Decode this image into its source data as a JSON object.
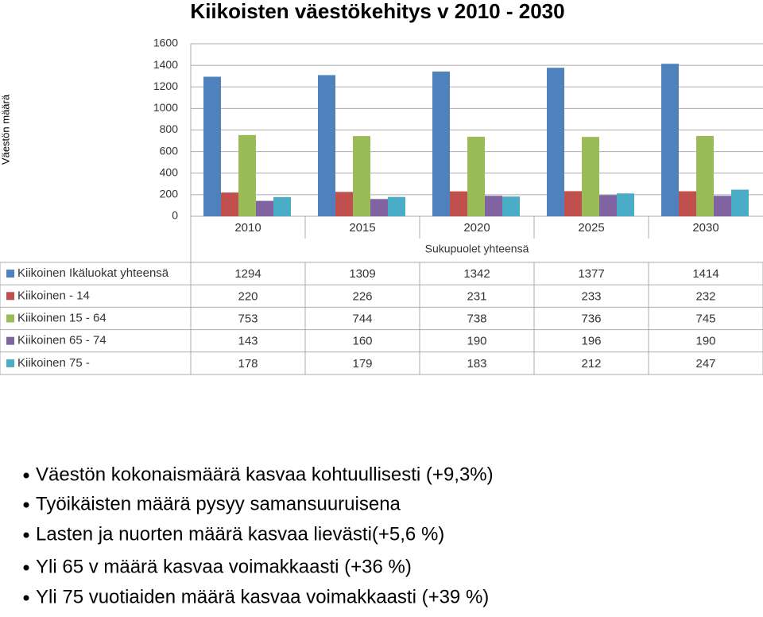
{
  "chart_data": {
    "type": "bar",
    "title": "Kiikoisten väestökehitys v 2010 - 2030",
    "y_label": "Väestön määrä",
    "x_label": "Sukupuolet yhteensä",
    "categories": [
      "2010",
      "2015",
      "2020",
      "2025",
      "2030"
    ],
    "series": [
      {
        "name": "Kiikoinen Ikäluokat yhteensä",
        "color": "#4f81bd",
        "values": [
          1294,
          1309,
          1342,
          1377,
          1414
        ]
      },
      {
        "name": "Kiikoinen - 14",
        "color": "#c0504d",
        "values": [
          220,
          226,
          231,
          233,
          232
        ]
      },
      {
        "name": "Kiikoinen 15 - 64",
        "color": "#9bbb59",
        "values": [
          753,
          744,
          738,
          736,
          745
        ]
      },
      {
        "name": "Kiikoinen 65 - 74",
        "color": "#8064a2",
        "values": [
          143,
          160,
          190,
          196,
          190
        ]
      },
      {
        "name": "Kiikoinen 75 -",
        "color": "#4bacc6",
        "values": [
          178,
          179,
          183,
          212,
          247
        ]
      }
    ],
    "ylim": [
      0,
      1600
    ],
    "yticks": [
      0,
      200,
      400,
      600,
      800,
      1000,
      1200,
      1400,
      1600
    ],
    "grid": true
  },
  "bullets": [
    "Väestön kokonaismäärä kasvaa kohtuullisesti (+9,3%)",
    "Työikäisten määrä pysyy samansuuruisena",
    "Lasten ja nuorten määrä  kasvaa lievästi(+5,6 %)",
    "Yli 65 v määrä kasvaa voimakkaasti (+36 %)",
    "Yli 75 vuotiaiden määrä kasvaa voimakkaasti (+39 %)"
  ]
}
